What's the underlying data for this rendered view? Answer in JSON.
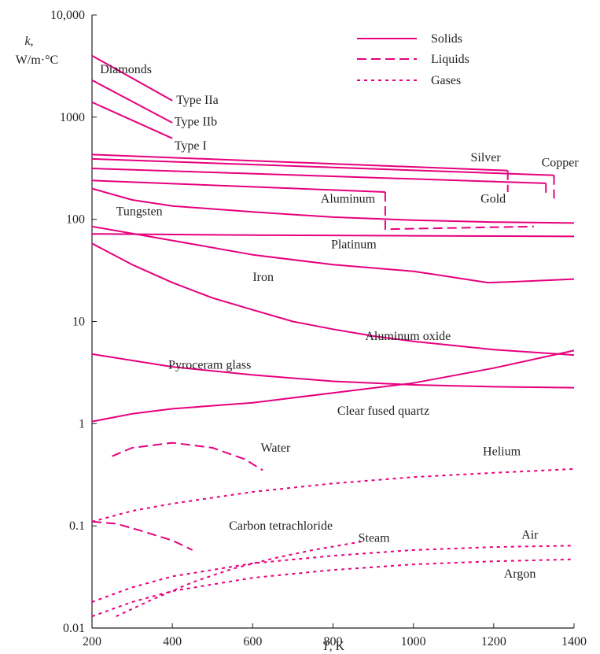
{
  "chart_data": {
    "type": "line",
    "title": "",
    "xlabel": "T, K",
    "xlabel_var": "T",
    "xlabel_unit": ", K",
    "ylabel_var": "k",
    "ylabel_comma": ",",
    "ylabel_unit": "W/m·°C",
    "xlim": [
      200,
      1400
    ],
    "ylim": [
      0.01,
      10000
    ],
    "yscale": "log",
    "grid": false,
    "legend_position": "top-right",
    "line_color": "#e6007e",
    "x_ticks": [
      {
        "value": 200,
        "label": "200"
      },
      {
        "value": 400,
        "label": "400"
      },
      {
        "value": 600,
        "label": "600"
      },
      {
        "value": 800,
        "label": "800"
      },
      {
        "value": 1000,
        "label": "1000"
      },
      {
        "value": 1200,
        "label": "1200"
      },
      {
        "value": 1400,
        "label": "1400"
      }
    ],
    "y_ticks": [
      {
        "value": 0.01,
        "label": "0.01"
      },
      {
        "value": 0.1,
        "label": "0.1"
      },
      {
        "value": 1,
        "label": "1"
      },
      {
        "value": 10,
        "label": "10"
      },
      {
        "value": 100,
        "label": "100"
      },
      {
        "value": 1000,
        "label": "1000"
      },
      {
        "value": 10000,
        "label": "10,000"
      }
    ],
    "legend": [
      {
        "label": "Solids",
        "style": "solid"
      },
      {
        "label": "Liquids",
        "style": "dashed"
      },
      {
        "label": "Gases",
        "style": "dotted"
      }
    ],
    "series": [
      {
        "name": "Type IIa",
        "style": "solid",
        "x": [
          200,
          400
        ],
        "y": [
          4000,
          1450
        ]
      },
      {
        "name": "Type IIb",
        "style": "solid",
        "x": [
          200,
          400
        ],
        "y": [
          2300,
          880
        ]
      },
      {
        "name": "Type I",
        "style": "solid",
        "x": [
          200,
          400
        ],
        "y": [
          1400,
          620
        ]
      },
      {
        "name": "Silver",
        "style": "solid",
        "x": [
          200,
          1235
        ],
        "y": [
          430,
          300
        ]
      },
      {
        "name": "",
        "style": "dashed",
        "x": [
          1235,
          1235
        ],
        "y": [
          300,
          185
        ]
      },
      {
        "name": "Copper",
        "style": "solid",
        "x": [
          200,
          1350
        ],
        "y": [
          390,
          270
        ]
      },
      {
        "name": "",
        "style": "dashed",
        "x": [
          1350,
          1350
        ],
        "y": [
          270,
          160
        ]
      },
      {
        "name": "Gold",
        "style": "solid",
        "x": [
          200,
          1330
        ],
        "y": [
          315,
          225
        ]
      },
      {
        "name": "",
        "style": "dashed",
        "x": [
          1330,
          1330
        ],
        "y": [
          225,
          170
        ]
      },
      {
        "name": "Aluminum",
        "style": "solid",
        "x": [
          200,
          930
        ],
        "y": [
          240,
          185
        ]
      },
      {
        "name": "",
        "style": "dashed",
        "x": [
          930,
          930,
          1300
        ],
        "y": [
          185,
          80,
          85
        ]
      },
      {
        "name": "Tungsten",
        "style": "solid",
        "x": [
          200,
          300,
          400,
          600,
          800,
          1000,
          1200,
          1400
        ],
        "y": [
          200,
          155,
          135,
          118,
          105,
          98,
          94,
          92
        ]
      },
      {
        "name": "Platinum",
        "style": "solid",
        "x": [
          200,
          600,
          1000,
          1400
        ],
        "y": [
          72,
          70,
          69,
          68
        ]
      },
      {
        "name": "Iron",
        "style": "solid",
        "x": [
          200,
          400,
          600,
          800,
          1000,
          1050,
          1185,
          1250,
          1400
        ],
        "y": [
          85,
          62,
          45,
          36,
          31,
          29,
          24,
          24.5,
          26
        ]
      },
      {
        "name": "Aluminum oxide",
        "style": "solid",
        "x": [
          200,
          300,
          400,
          500,
          600,
          700,
          800,
          900,
          1000,
          1200,
          1400
        ],
        "y": [
          58,
          36,
          24,
          17,
          13,
          10,
          8.4,
          7.2,
          6.4,
          5.3,
          4.7
        ]
      },
      {
        "name": "Pyroceram glass",
        "style": "solid",
        "x": [
          200,
          400,
          600,
          800,
          1000,
          1200,
          1400
        ],
        "y": [
          4.8,
          3.6,
          3.0,
          2.6,
          2.4,
          2.3,
          2.25
        ]
      },
      {
        "name": "Clear fused quartz",
        "style": "solid",
        "x": [
          200,
          300,
          400,
          600,
          800,
          1000,
          1200,
          1400
        ],
        "y": [
          1.05,
          1.25,
          1.4,
          1.6,
          2.0,
          2.5,
          3.5,
          5.2
        ]
      },
      {
        "name": "Water",
        "style": "dashed",
        "x": [
          250,
          300,
          400,
          500,
          580,
          625
        ],
        "y": [
          0.48,
          0.58,
          0.65,
          0.58,
          0.45,
          0.35
        ]
      },
      {
        "name": "Carbon tetrachloride",
        "style": "dashed",
        "x": [
          200,
          260,
          320,
          400,
          450
        ],
        "y": [
          0.11,
          0.105,
          0.09,
          0.072,
          0.058
        ]
      },
      {
        "name": "Helium",
        "style": "dotted",
        "x": [
          200,
          300,
          400,
          600,
          800,
          1000,
          1200,
          1400
        ],
        "y": [
          0.11,
          0.14,
          0.165,
          0.215,
          0.26,
          0.3,
          0.33,
          0.36
        ]
      },
      {
        "name": "Steam",
        "style": "dotted",
        "x": [
          260,
          350,
          450,
          550,
          650,
          750,
          870
        ],
        "y": [
          0.013,
          0.019,
          0.028,
          0.038,
          0.048,
          0.058,
          0.07
        ]
      },
      {
        "name": "Air",
        "style": "dotted",
        "x": [
          200,
          300,
          400,
          600,
          800,
          1000,
          1200,
          1400
        ],
        "y": [
          0.018,
          0.025,
          0.032,
          0.043,
          0.051,
          0.058,
          0.062,
          0.064
        ]
      },
      {
        "name": "Argon",
        "style": "dotted",
        "x": [
          200,
          300,
          400,
          600,
          800,
          1000,
          1200,
          1400
        ],
        "y": [
          0.013,
          0.018,
          0.023,
          0.031,
          0.037,
          0.042,
          0.045,
          0.047
        ]
      }
    ],
    "annotations": [
      {
        "text": "Diamonds",
        "x": 220,
        "y": 2700,
        "anchor": "start"
      },
      {
        "text": "Type IIa",
        "x": 410,
        "y": 1350,
        "anchor": "start"
      },
      {
        "text": "Type IIb",
        "x": 405,
        "y": 830,
        "anchor": "start"
      },
      {
        "text": "Type I",
        "x": 405,
        "y": 480,
        "anchor": "start"
      },
      {
        "text": "Silver",
        "x": 1180,
        "y": 370,
        "anchor": "middle"
      },
      {
        "text": "Copper",
        "x": 1365,
        "y": 330,
        "anchor": "middle"
      },
      {
        "text": "Gold",
        "x": 1230,
        "y": 145,
        "anchor": "end"
      },
      {
        "text": "Aluminum",
        "x": 905,
        "y": 145,
        "anchor": "end"
      },
      {
        "text": "Tungsten",
        "x": 260,
        "y": 110,
        "anchor": "start"
      },
      {
        "text": "Platinum",
        "x": 795,
        "y": 52,
        "anchor": "start"
      },
      {
        "text": "Iron",
        "x": 600,
        "y": 25,
        "anchor": "start"
      },
      {
        "text": "Aluminum oxide",
        "x": 880,
        "y": 6.6,
        "anchor": "start"
      },
      {
        "text": "Pyroceram glass",
        "x": 390,
        "y": 3.45,
        "anchor": "start"
      },
      {
        "text": "Clear fused quartz",
        "x": 1040,
        "y": 1.22,
        "anchor": "end"
      },
      {
        "text": "Water",
        "x": 620,
        "y": 0.53,
        "anchor": "start"
      },
      {
        "text": "Helium",
        "x": 1220,
        "y": 0.49,
        "anchor": "middle"
      },
      {
        "text": "Carbon tetrachloride",
        "x": 670,
        "y": 0.092,
        "anchor": "middle"
      },
      {
        "text": "Steam",
        "x": 902,
        "y": 0.07,
        "anchor": "middle"
      },
      {
        "text": "Air",
        "x": 1290,
        "y": 0.075,
        "anchor": "middle"
      },
      {
        "text": "Argon",
        "x": 1265,
        "y": 0.031,
        "anchor": "middle"
      }
    ]
  }
}
